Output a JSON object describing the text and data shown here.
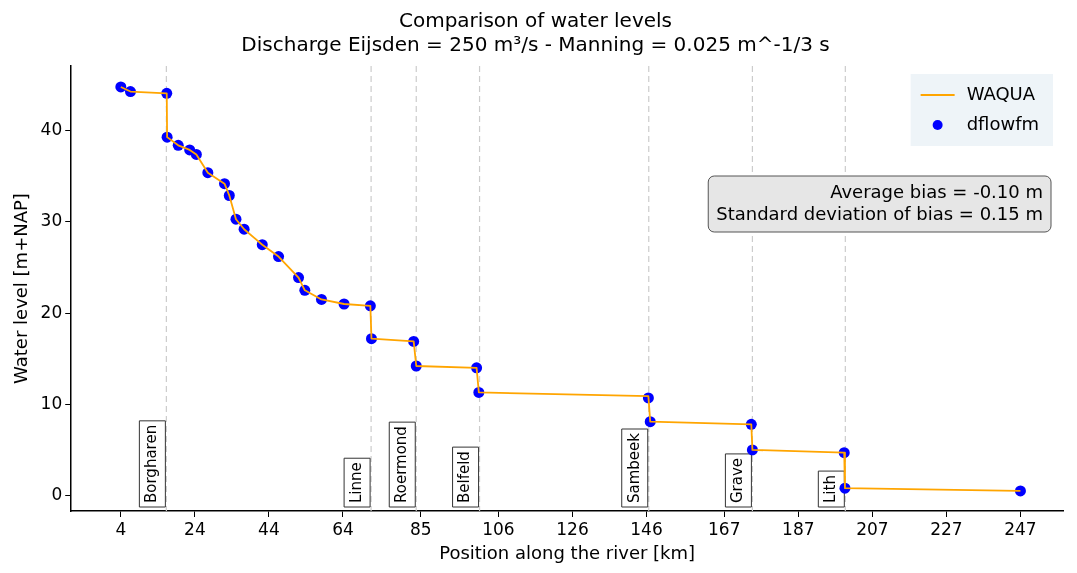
{
  "chart_data": {
    "type": "line",
    "title": "Comparison of water levels",
    "subtitle": "Discharge Eijsden = 250 m³/s - Manning = 0.025 m^-1/3 s",
    "xlabel": "Position along the river [km]",
    "ylabel": "Water level [m+NAP]",
    "series": [
      {
        "name": "WAQUA",
        "color": "#ffa500",
        "x": [
          4,
          6.6,
          16.4,
          16.5,
          19.5,
          22.6,
          24.4,
          27.5,
          32.0,
          33.3,
          35.1,
          37.3,
          42.2,
          46.6,
          52.0,
          53.7,
          58.2,
          64.3,
          71.4,
          71.7,
          83.1,
          83.8,
          100.1,
          100.7,
          146.5,
          147.0,
          174.3,
          174.6,
          199.4,
          199.6,
          247
        ],
        "values": [
          44.8,
          44.3,
          44.1,
          39.3,
          38.4,
          37.9,
          37.4,
          35.4,
          34.2,
          32.9,
          30.3,
          29.2,
          27.5,
          26.2,
          23.9,
          22.5,
          21.5,
          21.0,
          20.8,
          17.2,
          16.9,
          14.2,
          14.0,
          11.3,
          10.9,
          8.1,
          7.8,
          5.0,
          4.7,
          0.8,
          0.5
        ]
      },
      {
        "name": "dflowfm",
        "type": "scatter",
        "color": "#0000ff",
        "x": [
          4,
          6.6,
          16.4,
          16.5,
          19.5,
          22.6,
          24.4,
          27.5,
          32.0,
          33.3,
          35.1,
          37.3,
          42.2,
          46.6,
          52.0,
          53.7,
          58.2,
          64.3,
          71.4,
          71.7,
          83.1,
          83.8,
          100.1,
          100.7,
          146.5,
          147.0,
          174.3,
          174.6,
          199.4,
          199.6,
          247
        ],
        "values": [
          44.8,
          44.3,
          44.1,
          39.3,
          38.4,
          37.9,
          37.4,
          35.4,
          34.2,
          32.9,
          30.3,
          29.2,
          27.5,
          26.2,
          23.9,
          22.5,
          21.5,
          21.0,
          20.8,
          17.2,
          16.9,
          14.2,
          14.0,
          11.3,
          10.7,
          8.1,
          7.8,
          5.0,
          4.7,
          0.8,
          0.5
        ]
      }
    ],
    "xlim": [
      -9.4,
      258.5
    ],
    "xticks": [
      4,
      24,
      44,
      64,
      85,
      106,
      126,
      146,
      167,
      187,
      207,
      227,
      247
    ],
    "ylim": [
      -1.7,
      47.1
    ],
    "yticks": [
      0,
      10,
      20,
      30,
      40
    ],
    "ref_lines": [
      {
        "axis": "x",
        "value": 16.3,
        "label": "Borgharen",
        "color": "#cccccc",
        "line_style": "dashed"
      },
      {
        "axis": "x",
        "value": 71.6,
        "label": "Linne",
        "color": "#cccccc",
        "line_style": "dashed"
      },
      {
        "axis": "x",
        "value": 83.8,
        "label": "Roermond",
        "color": "#cccccc",
        "line_style": "dashed"
      },
      {
        "axis": "x",
        "value": 100.9,
        "label": "Belfeld",
        "color": "#cccccc",
        "line_style": "dashed"
      },
      {
        "axis": "x",
        "value": 146.6,
        "label": "Sambeek",
        "color": "#cccccc",
        "line_style": "dashed"
      },
      {
        "axis": "x",
        "value": 174.6,
        "label": "Grave",
        "color": "#cccccc",
        "line_style": "dashed"
      },
      {
        "axis": "x",
        "value": 199.7,
        "label": "Lith",
        "color": "#cccccc",
        "line_style": "dashed"
      }
    ],
    "annotations": [
      "Average bias = -0.10 m",
      "Standard deviation of bias = 0.15 m"
    ],
    "legend": "top right",
    "grid": false
  }
}
